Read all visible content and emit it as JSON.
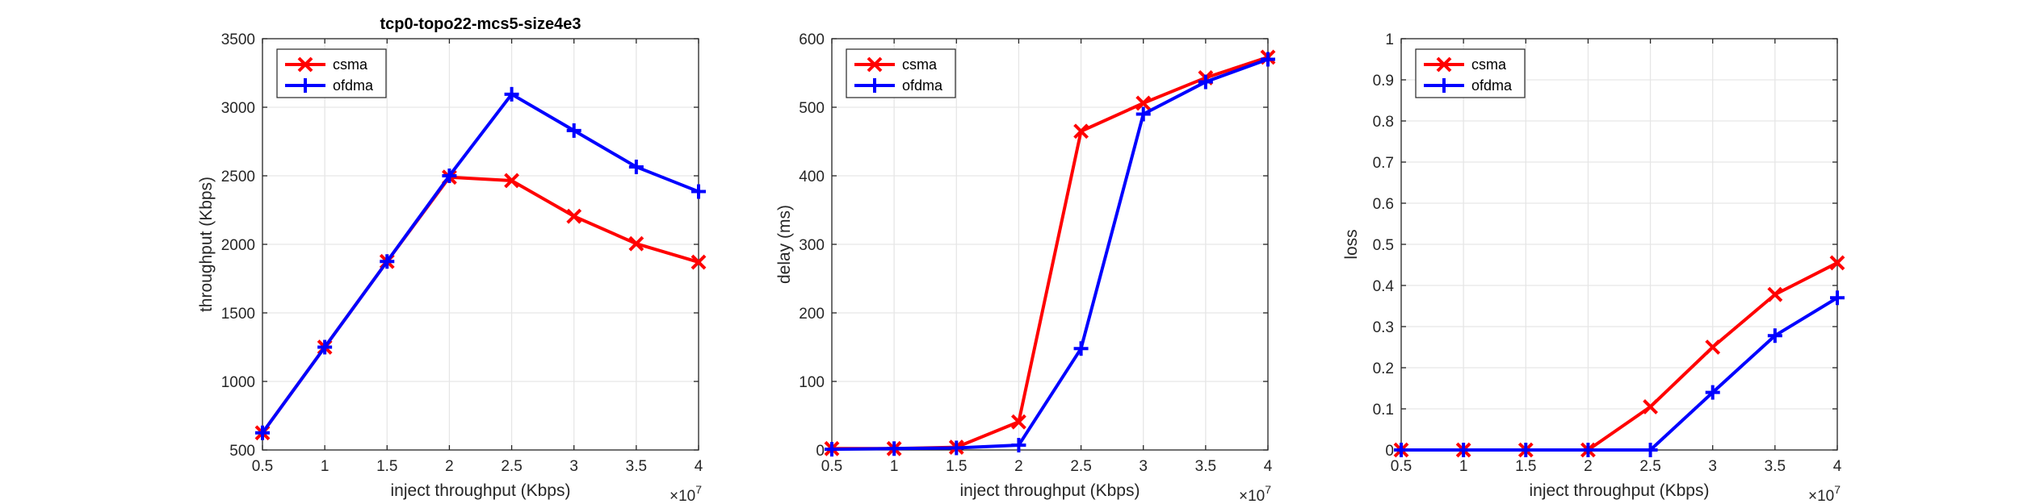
{
  "chart_data": [
    {
      "type": "line",
      "title": "tcp0-topo22-mcs5-size4e3",
      "xlabel": "inject throughput (Kbps)",
      "ylabel": "throughput (Kbps)",
      "x_exponent_label": "×10",
      "x_exponent": "7",
      "x": [
        0.5,
        1,
        1.5,
        2,
        2.5,
        3,
        3.5,
        4
      ],
      "xlim": [
        0.5,
        4
      ],
      "ylim": [
        500,
        3500
      ],
      "xticks": [
        "0.5",
        "1",
        "1.5",
        "2",
        "2.5",
        "3",
        "3.5",
        "4"
      ],
      "yticks": [
        "500",
        "1000",
        "1500",
        "2000",
        "2500",
        "3000",
        "3500"
      ],
      "grid": true,
      "legend_position": "top-left",
      "series": [
        {
          "name": "csma",
          "color": "#ff0000",
          "marker": "x",
          "values": [
            625,
            1250,
            1875,
            2490,
            2465,
            2205,
            2005,
            1870
          ]
        },
        {
          "name": "ofdma",
          "color": "#0000ff",
          "marker": "+",
          "values": [
            625,
            1250,
            1875,
            2500,
            3095,
            2830,
            2565,
            2385
          ]
        }
      ]
    },
    {
      "type": "line",
      "title": "",
      "xlabel": "inject throughput (Kbps)",
      "ylabel": "delay (ms)",
      "x_exponent_label": "×10",
      "x_exponent": "7",
      "x": [
        0.5,
        1,
        1.5,
        2,
        2.5,
        3,
        3.5,
        4
      ],
      "xlim": [
        0.5,
        4
      ],
      "ylim": [
        0,
        600
      ],
      "xticks": [
        "0.5",
        "1",
        "1.5",
        "2",
        "2.5",
        "3",
        "3.5",
        "4"
      ],
      "yticks": [
        "0",
        "100",
        "200",
        "300",
        "400",
        "500",
        "600"
      ],
      "grid": true,
      "legend_position": "top-left",
      "series": [
        {
          "name": "csma",
          "color": "#ff0000",
          "marker": "x",
          "values": [
            2,
            2,
            4,
            41,
            465,
            506,
            543,
            573
          ]
        },
        {
          "name": "ofdma",
          "color": "#0000ff",
          "marker": "+",
          "values": [
            1,
            2,
            3,
            7,
            148,
            490,
            537,
            570
          ]
        }
      ]
    },
    {
      "type": "line",
      "title": "",
      "xlabel": "inject throughput (Kbps)",
      "ylabel": "loss",
      "x_exponent_label": "×10",
      "x_exponent": "7",
      "x": [
        0.5,
        1,
        1.5,
        2,
        2.5,
        3,
        3.5,
        4
      ],
      "xlim": [
        0.5,
        4
      ],
      "ylim": [
        0,
        1
      ],
      "xticks": [
        "0.5",
        "1",
        "1.5",
        "2",
        "2.5",
        "3",
        "3.5",
        "4"
      ],
      "yticks": [
        "0",
        "0.1",
        "0.2",
        "0.3",
        "0.4",
        "0.5",
        "0.6",
        "0.7",
        "0.8",
        "0.9",
        "1"
      ],
      "grid": true,
      "legend_position": "top-left",
      "series": [
        {
          "name": "csma",
          "color": "#ff0000",
          "marker": "x",
          "values": [
            0,
            0,
            0,
            0,
            0.105,
            0.25,
            0.378,
            0.455
          ]
        },
        {
          "name": "ofdma",
          "color": "#0000ff",
          "marker": "+",
          "values": [
            0,
            0,
            0,
            0,
            0,
            0.14,
            0.278,
            0.37
          ]
        }
      ]
    }
  ]
}
